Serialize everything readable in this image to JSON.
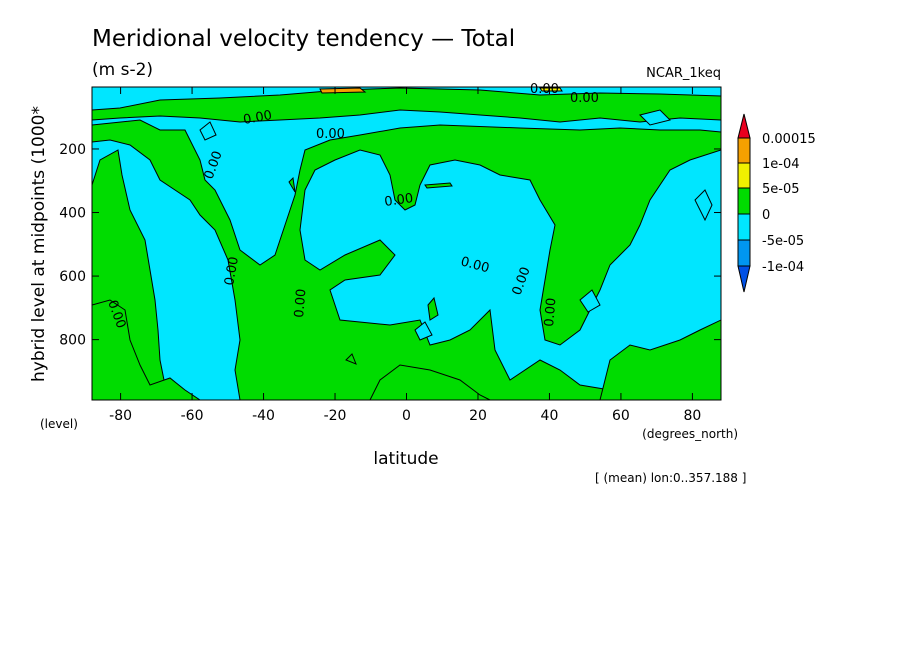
{
  "chart_data": {
    "type": "heatmap",
    "title": "Meridional velocity tendency — Total",
    "subtitle": "(m s-2)",
    "dataset": "NCAR_1keq",
    "xlabel": "latitude",
    "xunits": "(degrees_north)",
    "ylabel": "hybrid level at midpoints (1000*",
    "yunits": "(level)",
    "footnote": "[ (mean) lon:0..357.188 ]",
    "xlim": [
      -88,
      88
    ],
    "ylim": [
      990,
      5
    ],
    "y_inverted": true,
    "xticks": [
      -80,
      -60,
      -40,
      -20,
      0,
      20,
      40,
      60,
      80
    ],
    "yticks": [
      200,
      400,
      600,
      800
    ],
    "contour_level": 0,
    "contour_label": "0.00",
    "colorbar": {
      "labels": [
        "0.00015",
        "1e-04",
        "5e-05",
        "0",
        "-5e-05",
        "-1e-04"
      ],
      "colors": {
        "above_0.00015": "#e8001e",
        "1e-04_to_0.00015": "#f5a000",
        "5e-05_to_1e-04": "#f0f000",
        "0_to_5e-05": "#00dc00",
        "-5e-05_to_0": "#00e6ff",
        "-1e-04_to_-5e-05": "#0096f0",
        "below_-1e-04": "#0050e6"
      }
    },
    "regions": [
      {
        "sign": "positive",
        "band": "0_to_5e-05",
        "lat_range": [
          -88,
          -74
        ],
        "level_range": [
          300,
          990
        ]
      },
      {
        "sign": "positive",
        "band": "0_to_5e-05",
        "lat_range": [
          -62,
          -40
        ],
        "level_range": [
          150,
          990
        ]
      },
      {
        "sign": "positive",
        "band": "0_to_5e-05",
        "lat_range": [
          -36,
          -2
        ],
        "level_range": [
          500,
          990
        ]
      },
      {
        "sign": "positive",
        "band": "0_to_5e-05",
        "lat_range": [
          0,
          26
        ],
        "level_range": [
          780,
          990
        ]
      },
      {
        "sign": "positive",
        "band": "0_to_5e-05",
        "lat_range": [
          30,
          52
        ],
        "level_range": [
          150,
          990
        ]
      },
      {
        "sign": "positive",
        "band": "0_to_5e-05",
        "lat_range": [
          56,
          84
        ],
        "level_range": [
          150,
          990
        ]
      },
      {
        "sign": "negative",
        "band": "-5e-05_to_0",
        "lat_range": [
          -88,
          88
        ],
        "level_range": [
          5,
          80
        ]
      },
      {
        "sign": "negative",
        "band": "-5e-05_to_0",
        "lat_range": [
          -72,
          -64
        ],
        "level_range": [
          400,
          990
        ]
      },
      {
        "sign": "negative",
        "band": "-5e-05_to_0",
        "lat_range": [
          -20,
          26
        ],
        "level_range": [
          160,
          760
        ]
      },
      {
        "sign": "negative",
        "band": "-5e-05_to_0",
        "lat_range": [
          28,
          40
        ],
        "level_range": [
          500,
          990
        ]
      },
      {
        "sign": "negative",
        "band": "-5e-05_to_0",
        "lat_range": [
          56,
          86
        ],
        "level_range": [
          620,
          990
        ]
      }
    ]
  }
}
